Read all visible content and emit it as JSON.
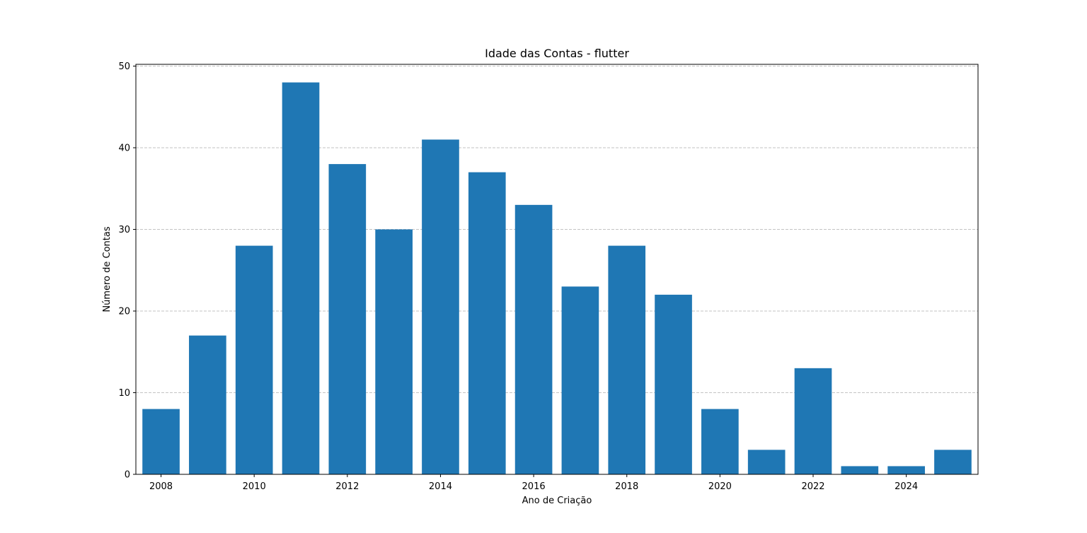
{
  "chart_data": {
    "type": "bar",
    "title": "Idade das Contas - flutter",
    "xlabel": "Ano de Criação",
    "ylabel": "Número de Contas",
    "categories": [
      2008,
      2009,
      2010,
      2011,
      2012,
      2013,
      2014,
      2015,
      2016,
      2017,
      2018,
      2019,
      2020,
      2021,
      2022,
      2023,
      2024,
      2025
    ],
    "values": [
      8,
      17,
      28,
      48,
      38,
      30,
      41,
      37,
      33,
      23,
      28,
      22,
      8,
      3,
      13,
      1,
      1,
      3
    ],
    "xticks": [
      "2008",
      "2010",
      "2012",
      "2014",
      "2016",
      "2018",
      "2020",
      "2022",
      "2024"
    ],
    "yticks": [
      "0",
      "10",
      "20",
      "30",
      "40",
      "50"
    ],
    "ylim": [
      0,
      50
    ],
    "grid": "y-dashed",
    "bar_color": "#1f77b4",
    "grid_color": "#b0b0b0"
  }
}
